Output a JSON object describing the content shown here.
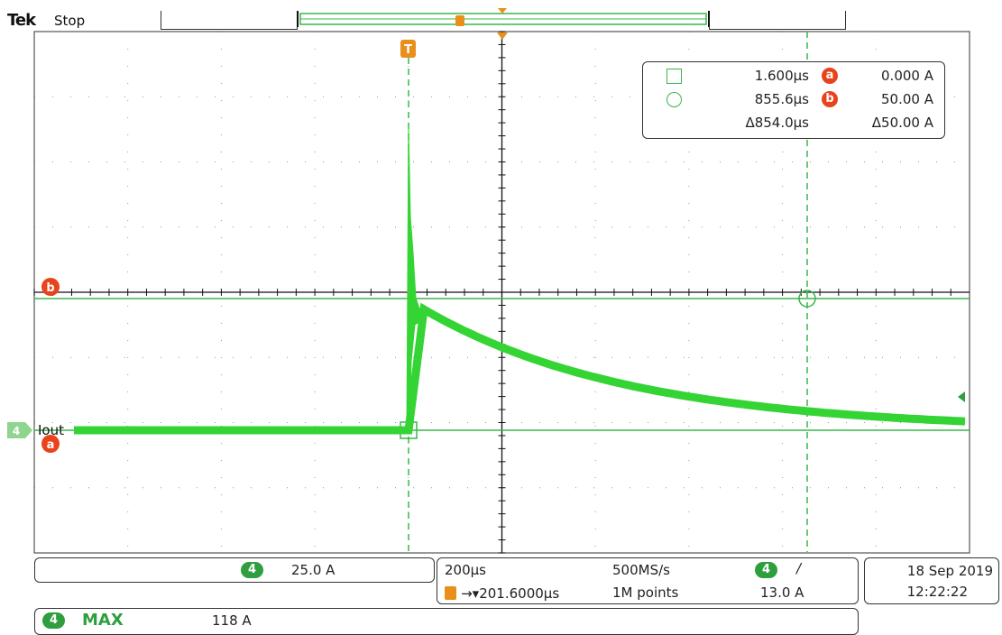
{
  "header": {
    "brand": "Tek",
    "run_state": "Stop"
  },
  "colors": {
    "trace": "#35d435",
    "cursor_line": "#3bb54a",
    "grid": "#111111",
    "trigger": "#e8901b",
    "cursor_badge": "#e8431b"
  },
  "cursor_readout": {
    "square_time": "1.600µs",
    "circle_time": "855.6µs",
    "delta_time": "Δ854.0µs",
    "cursor_a_label": "a",
    "cursor_a_value": "0.000 A",
    "cursor_b_label": "b",
    "cursor_b_value": "50.00 A",
    "delta_value": "Δ50.00 A"
  },
  "channel": {
    "number": "4",
    "label": "Iout",
    "scale": "25.0 A"
  },
  "cursor_labels": {
    "a": "a",
    "b": "b",
    "trigger": "T"
  },
  "timebase": {
    "per_div": "200µs",
    "trigger_delay": "201.6000µs",
    "sample_rate": "500MS/s",
    "record_length": "1M points"
  },
  "trigger": {
    "channel": "4",
    "slope": "/",
    "level": "13.0 A"
  },
  "datetime": {
    "date": "18 Sep  2019",
    "time": "12:22:22"
  },
  "measurement": {
    "channel": "4",
    "name": "MAX",
    "value": "118 A"
  }
}
